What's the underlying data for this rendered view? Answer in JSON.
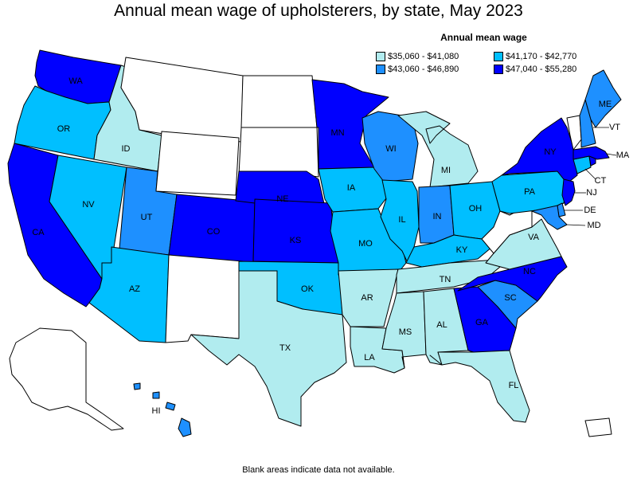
{
  "title": "Annual mean wage of upholsterers, by state, May 2023",
  "legend": {
    "title": "Annual mean wage",
    "items": [
      {
        "label": "$35,060 - $41,080",
        "color": "#b1ecef",
        "tier": 1
      },
      {
        "label": "$41,170 - $42,770",
        "color": "#00bfff",
        "tier": 2
      },
      {
        "label": "$43,060 - $46,890",
        "color": "#1e90ff",
        "tier": 3
      },
      {
        "label": "$47,040 - $55,280",
        "color": "#0000ff",
        "tier": 4
      }
    ]
  },
  "no_data_color": "#ffffff",
  "footer": "Blank areas indicate data not available.",
  "chart_data": {
    "type": "choropleth",
    "title": "Annual mean wage of upholsterers, by state, May 2023",
    "legend_title": "Annual mean wage",
    "legend_placement": "top-right",
    "bins": [
      "$35,060 - $41,080",
      "$41,170 - $42,770",
      "$43,060 - $46,890",
      "$47,040 - $55,280"
    ],
    "states": {
      "WA": 4,
      "OR": 2,
      "CA": 4,
      "ID": 1,
      "NV": 2,
      "UT": 3,
      "AZ": 2,
      "MT": 0,
      "WY": 0,
      "CO": 4,
      "NM": 0,
      "ND": 0,
      "SD": 0,
      "NE": 4,
      "KS": 4,
      "OK": 2,
      "TX": 1,
      "MN": 4,
      "IA": 2,
      "MO": 2,
      "AR": 1,
      "LA": 1,
      "WI": 3,
      "IL": 2,
      "MI": 1,
      "IN": 3,
      "OH": 2,
      "KY": 2,
      "TN": 1,
      "MS": 1,
      "AL": 1,
      "GA": 4,
      "FL": 1,
      "SC": 3,
      "NC": 4,
      "VA": 1,
      "WV": 0,
      "PA": 2,
      "NY": 4,
      "NJ": 4,
      "DE": 3,
      "MD": 3,
      "CT": 2,
      "MA": 4,
      "RI": 4,
      "VT": 0,
      "NH": 3,
      "ME": 3,
      "HI": 3,
      "AK": 0,
      "PR": 0
    },
    "labels": {
      "WA": "WA",
      "OR": "OR",
      "CA": "CA",
      "ID": "ID",
      "NV": "NV",
      "UT": "UT",
      "AZ": "AZ",
      "CO": "CO",
      "NE": "NE",
      "KS": "KS",
      "OK": "OK",
      "TX": "TX",
      "MN": "MN",
      "IA": "IA",
      "MO": "MO",
      "AR": "AR",
      "LA": "LA",
      "WI": "WI",
      "IL": "IL",
      "MI": "MI",
      "IN": "IN",
      "OH": "OH",
      "KY": "KY",
      "TN": "TN",
      "MS": "MS",
      "AL": "AL",
      "GA": "GA",
      "FL": "FL",
      "SC": "SC",
      "NC": "NC",
      "VA": "VA",
      "PA": "PA",
      "NY": "NY",
      "NJ": "NJ",
      "DE": "DE",
      "MD": "MD",
      "CT": "CT",
      "MA": "MA",
      "VT": "VT",
      "ME": "ME",
      "HI": "HI"
    }
  }
}
